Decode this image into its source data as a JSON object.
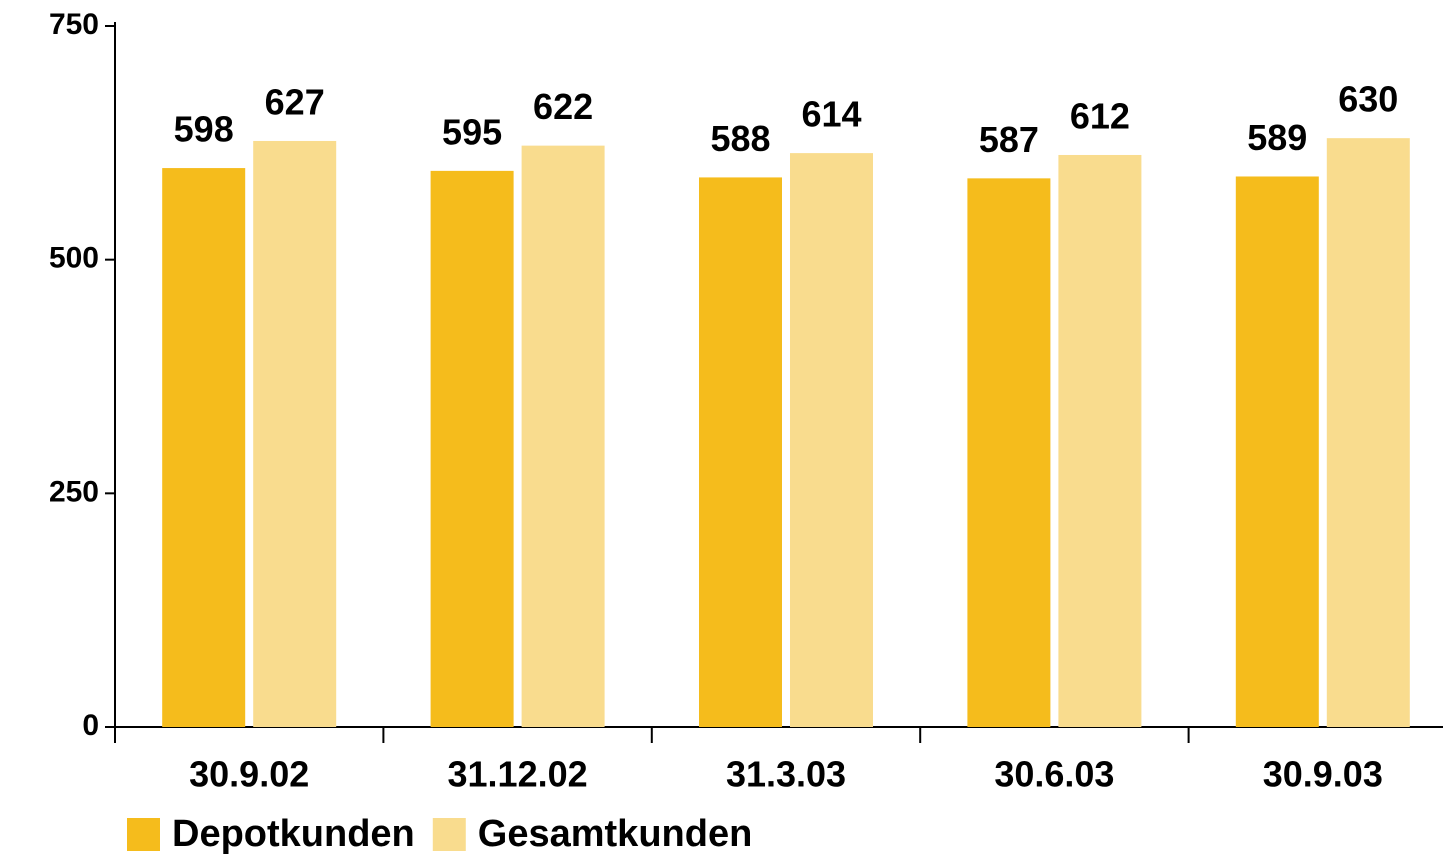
{
  "chart_data": {
    "type": "bar",
    "categories": [
      "30.9.02",
      "31.12.02",
      "31.3.03",
      "30.6.03",
      "30.9.03"
    ],
    "series": [
      {
        "name": "Depotkunden",
        "color": "#f5bc1c",
        "values": [
          598,
          595,
          588,
          587,
          589
        ]
      },
      {
        "name": "Gesamtkunden",
        "color": "#f9dc8e",
        "values": [
          627,
          622,
          614,
          612,
          630
        ]
      }
    ],
    "ylim": [
      0,
      750
    ],
    "yticks": [
      0,
      250,
      500,
      750
    ]
  }
}
